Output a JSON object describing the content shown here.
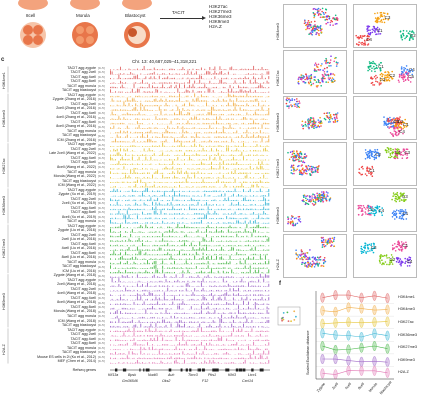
{
  "panel_letters": {
    "c": "c",
    "f": "f"
  },
  "embryo_labels": [
    "8cell",
    "Morula",
    "Blastocyst"
  ],
  "method_label": "TACIT",
  "method_outputs": [
    "H3K27ac",
    "H3K27me3",
    "H3K36me3",
    "H3K9me3",
    "H2A.Z"
  ],
  "track_header": {
    "chrom": "Chr. 13: 40,687,025–41,318,221",
    "scale_label": "[0–5]"
  },
  "groups": [
    {
      "name": "H3K4me1",
      "color": "#e06666",
      "rows": [
        "TACIT agg zygote",
        "TACIT agg 2cell",
        "TACIT agg 4cell",
        "TACIT agg 8cell",
        "TACIT agg morula",
        "TACIT agg blastocyst"
      ]
    },
    {
      "name": "H3K4me3",
      "color": "#f1b04c",
      "rows": [
        "TACIT agg zygote",
        "Zygote (Zhang et al., 2016)",
        "TACIT agg 2cell",
        "2cell (Zhang et al., 2016)",
        "TACIT agg 4cell",
        "4cell (Zhang et al., 2016)",
        "TACIT agg 8cell",
        "8cell (Zhang et al., 2016)",
        "TACIT agg morula",
        "TACIT agg blastocyst",
        "ICM (Zhang et al., 2016)"
      ]
    },
    {
      "name": "H3K27ac",
      "color": "#e6c63c",
      "rows": [
        "TACIT agg zygote",
        "TACIT agg 2cell",
        "Late 2cell (Wang et al., 2022)",
        "TACIT agg 4cell",
        "TACIT agg 8cell",
        "8cell (Wang et al., 2022)",
        "TACIT agg morula",
        "Morula (Wang et al., 2022)",
        "TACIT agg blastocyst",
        "ICM (Wang et al., 2022)"
      ]
    },
    {
      "name": "H3K36me3",
      "color": "#3fb7d6",
      "rows": [
        "TACIT agg zygote",
        "Zygote (Xu et al., 2019)",
        "TACIT agg 2cell",
        "2cell (Xu et al., 2019)",
        "TACIT agg 4cell",
        "TACIT agg 8cell",
        "8cell (Xu et al., 2019)",
        "TACIT agg morula"
      ]
    },
    {
      "name": "H3K27me3",
      "color": "#4cb84c",
      "rows": [
        "TACIT agg zygote",
        "Zygote (Liu et al., 2016)",
        "TACIT agg 2cell",
        "2cell (Liu et al., 2016)",
        "TACIT agg 4cell",
        "4cell (Liu et al., 2016)",
        "TACIT agg 8cell",
        "8cell (Liu et al., 2016)",
        "TACIT agg morula",
        "TACIT agg blastocyst",
        "ICM (Liu et al., 2016)"
      ]
    },
    {
      "name": "H3K9me3",
      "color": "#a06bc8",
      "rows": [
        "Zygote (Wang et al., 2018)",
        "TACIT agg zygote",
        "2cell (Wang et al., 2018)",
        "TACIT agg 2cell",
        "4cell (Wang et al., 2018)",
        "TACIT agg 4cell",
        "8cell (Wang et al., 2018)",
        "TACIT agg 8cell",
        "Morula (Wang et al., 2018)",
        "TACIT agg morula",
        "ICM (Wang et al., 2018)",
        "TACIT agg blastocyst"
      ]
    },
    {
      "name": "H2A.Z",
      "color": "#e27bb6",
      "rows": [
        "TACIT agg zygote",
        "TACIT agg 2cell",
        "TACIT agg 4cell",
        "TACIT agg 8cell",
        "TACIT agg morula",
        "TACIT agg blastocyst",
        "Mouse ES cells in 2i (Ku et al., 2012)",
        "MEF (Chen et al., 2014)"
      ]
    }
  ],
  "refseq_label": "Refseq genes",
  "genes_top": [
    "Kif13a",
    "Bpsk",
    "Nudt3",
    "Auh",
    "Tbcc3",
    "Pks1",
    "Klhl3",
    "Ltcc1"
  ],
  "genes_bottom": [
    "Gm36546",
    "Oks2",
    "F12",
    "Cxcl14"
  ],
  "umap_panels": [
    {
      "mark": "H3K4me3",
      "clusters": [
        "C1",
        "C2",
        "C3",
        "C4"
      ]
    },
    {
      "mark": "H3K27ac",
      "clusters": [
        "C1",
        "C2",
        "C3",
        "C4",
        "C5"
      ]
    },
    {
      "mark": "H3K36me3",
      "clusters": [
        "C1",
        "C2",
        "C3",
        "C4"
      ]
    },
    {
      "mark": "H3K27me3",
      "clusters": [
        "C1",
        "C2",
        "C3",
        "C4"
      ]
    },
    {
      "mark": "H3K9me3",
      "clusters": [
        "C1",
        "C2",
        "C3",
        "C4"
      ]
    },
    {
      "mark": "H2A.Z",
      "clusters": [
        "C1",
        "C2",
        "C3",
        "C4"
      ]
    }
  ],
  "violin": {
    "ylabel": "Scaled Euclidean distance",
    "marks": [
      "H3K4me1",
      "H3K4me3",
      "H3K27ac",
      "H3K36me3",
      "H3K27me3",
      "H3K9me3",
      "H2A.Z"
    ],
    "stages": [
      "Zygote",
      "2cell",
      "4cell",
      "8cell",
      "Morula",
      "Blastocyst"
    ]
  },
  "colors": {
    "embryo": "#e8764a",
    "embryo_light": "#f6c4a8",
    "cluster_palette": [
      "#7c3aed",
      "#10b981",
      "#f59e0b",
      "#ef4444",
      "#3b82f6",
      "#ec4899",
      "#84cc16",
      "#06b6d4"
    ]
  }
}
